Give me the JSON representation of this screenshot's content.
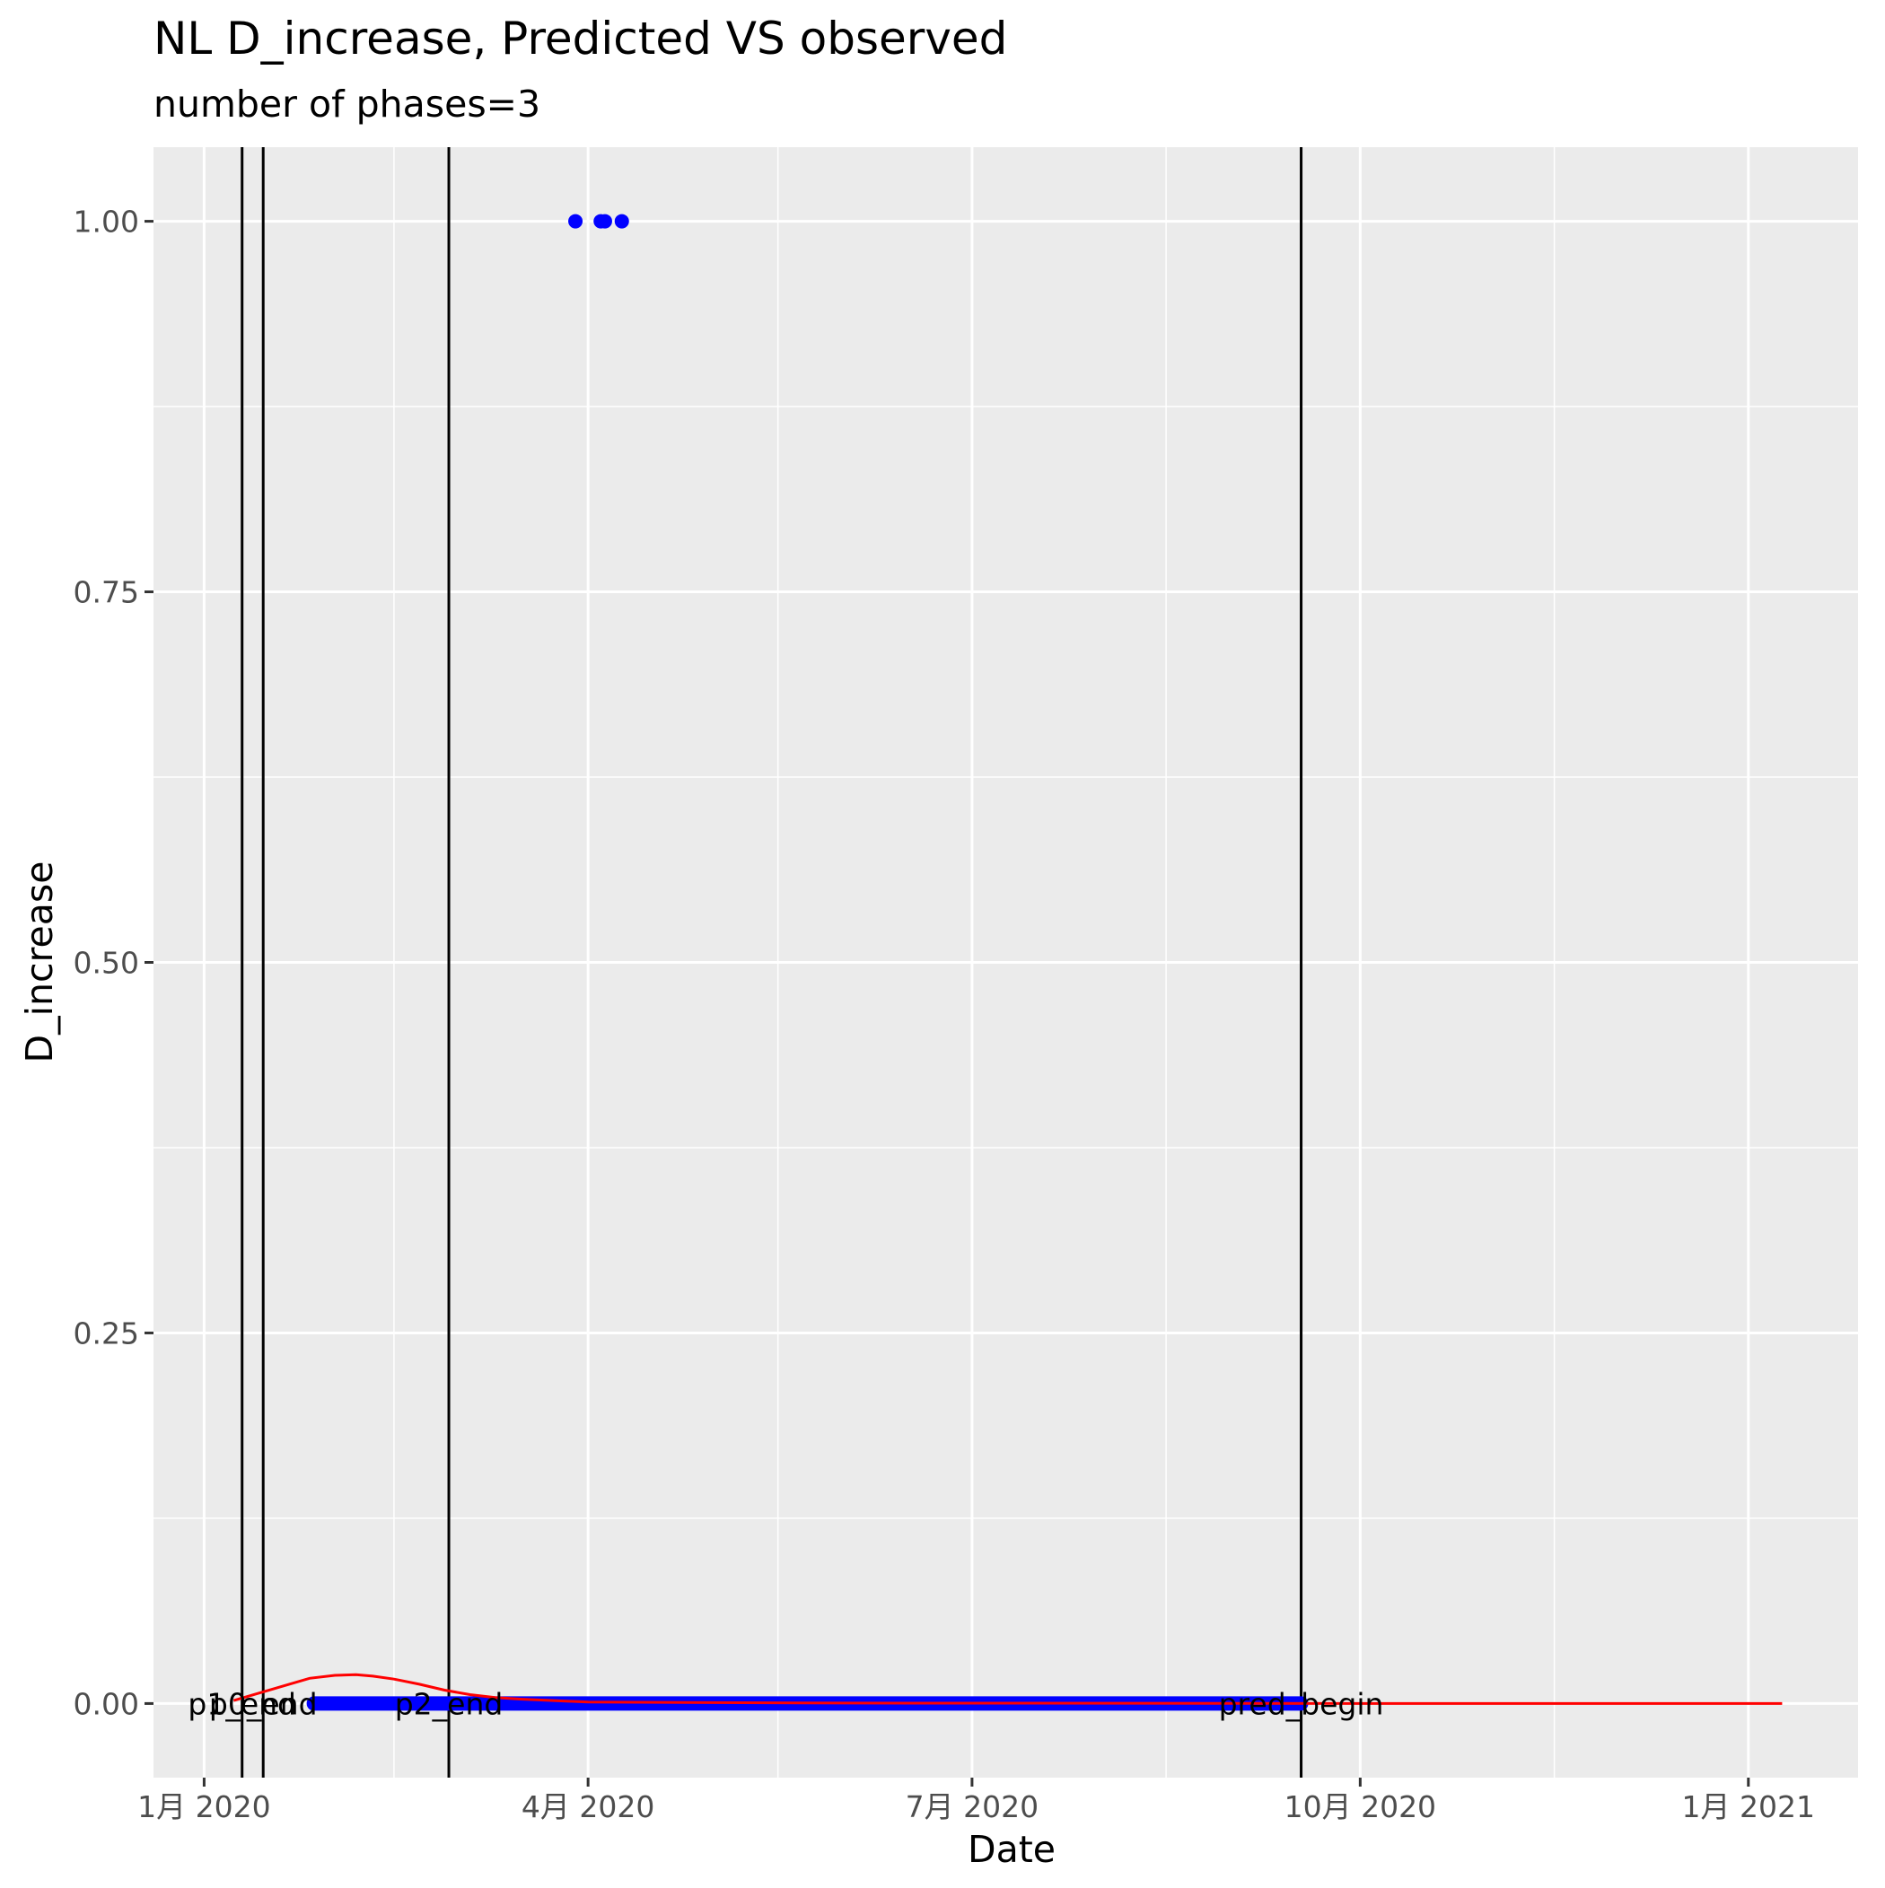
{
  "chart_data": {
    "type": "line",
    "title": "NL D_increase, Predicted VS observed",
    "subtitle": "number of phases=3",
    "xlabel": "Date",
    "ylabel": "D_increase",
    "xlim": [
      "2019-12-20",
      "2021-01-27"
    ],
    "ylim": [
      -0.05,
      1.05
    ],
    "grid": true,
    "y_ticks": [
      0,
      0.25,
      0.5,
      0.75,
      1
    ],
    "y_tick_labels": [
      "0.00",
      "0.25",
      "0.50",
      "0.75",
      "1.00"
    ],
    "x_ticks": [
      "2020-01-01",
      "2020-04-01",
      "2020-07-01",
      "2020-10-01",
      "2021-01-01"
    ],
    "x_tick_labels": [
      "1月 2020",
      "4月 2020",
      "7月 2020",
      "10月 2020",
      "1月 2021"
    ],
    "x_minor_ticks": [
      "2020-02-15",
      "2020-05-16",
      "2020-08-16",
      "2020-11-16"
    ],
    "series": [
      {
        "role": "observed",
        "color": "#0000FF",
        "range": [
          "2020-01-27",
          "2020-09-17"
        ],
        "baseline": 0,
        "points": [
          {
            "x": "2020-03-29",
            "y": 1
          },
          {
            "x": "2020-04-04",
            "y": 1
          },
          {
            "x": "2020-04-05",
            "y": 1
          },
          {
            "x": "2020-04-09",
            "y": 1
          }
        ]
      },
      {
        "role": "predicted",
        "color": "#FF0000",
        "x": [
          "2020-01-08",
          "2020-01-14",
          "2020-01-20",
          "2020-01-26",
          "2020-02-01",
          "2020-02-06",
          "2020-02-10",
          "2020-02-15",
          "2020-02-21",
          "2020-02-27",
          "2020-03-04",
          "2020-03-10",
          "2020-03-16",
          "2020-04-01",
          "2020-06-01",
          "2020-09-01",
          "2020-10-01",
          "2021-01-09"
        ],
        "y": [
          0.002,
          0.007,
          0.012,
          0.017,
          0.019,
          0.0195,
          0.0185,
          0.0165,
          0.013,
          0.009,
          0.006,
          0.004,
          0.003,
          0.001,
          0.0003,
          0.0001,
          0,
          0
        ]
      }
    ],
    "vlines": [
      {
        "x": "2020-01-10",
        "label": "p1_end"
      },
      {
        "x": "2020-01-15",
        "label": "p0_end"
      },
      {
        "x": "2020-02-28",
        "label": "p2_end"
      },
      {
        "x": "2020-09-17",
        "label": "pred_begin"
      }
    ]
  }
}
